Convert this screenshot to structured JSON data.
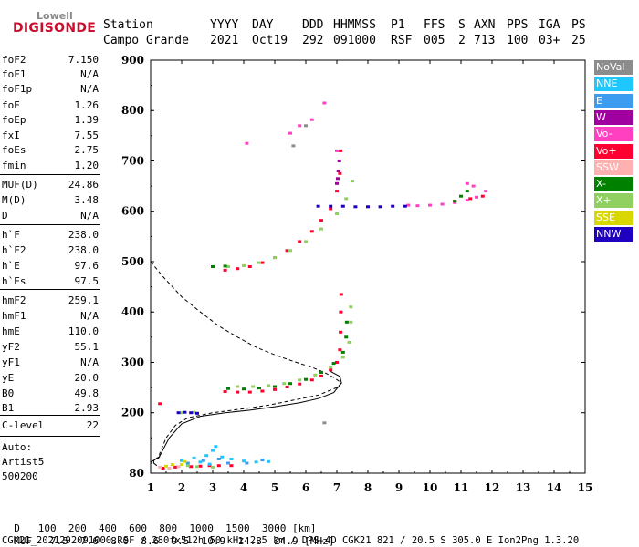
{
  "logo": {
    "line1": "Lowell",
    "line2": "DIGISONDE"
  },
  "header": {
    "row1": [
      "Station",
      "YYYY",
      "DAY",
      "DDD",
      "HHMMSS",
      "P1",
      "FFS",
      "S",
      "AXN",
      "PPS",
      "IGA",
      "PS"
    ],
    "row2": [
      "Campo Grande",
      "2021",
      "Oct19",
      "292",
      "091000",
      "RSF",
      "005",
      "2",
      "713",
      "100",
      "03+",
      "25"
    ]
  },
  "params": [
    {
      "name": "foF2",
      "value": "7.150"
    },
    {
      "name": "foF1",
      "value": "N/A"
    },
    {
      "name": "foF1p",
      "value": "N/A"
    },
    {
      "name": "foE",
      "value": "1.26"
    },
    {
      "name": "foEp",
      "value": "1.39"
    },
    {
      "name": "fxI",
      "value": "7.55"
    },
    {
      "name": "foEs",
      "value": "2.75"
    },
    {
      "name": "fmin",
      "value": "1.20"
    },
    {
      "name": "MUF(D)",
      "value": "24.86"
    },
    {
      "name": "M(D)",
      "value": "3.48"
    },
    {
      "name": "D",
      "value": "N/A"
    },
    {
      "name": "h`F",
      "value": "238.0"
    },
    {
      "name": "h`F2",
      "value": "238.0"
    },
    {
      "name": "h`E",
      "value": "97.6"
    },
    {
      "name": "h`Es",
      "value": "97.5"
    },
    {
      "name": "hmF2",
      "value": "259.1"
    },
    {
      "name": "hmF1",
      "value": "N/A"
    },
    {
      "name": "hmE",
      "value": "110.0"
    },
    {
      "name": "yF2",
      "value": "55.1"
    },
    {
      "name": "yF1",
      "value": "N/A"
    },
    {
      "name": "yE",
      "value": "20.0"
    },
    {
      "name": "B0",
      "value": "49.8"
    },
    {
      "name": "B1",
      "value": "2.93"
    },
    {
      "name": "C-level",
      "value": "22"
    }
  ],
  "auto": {
    "line1": "Auto:",
    "line2": "Artist5",
    "line3": "500200"
  },
  "legend": [
    {
      "label": "NoVal",
      "color": "#8c8c8c"
    },
    {
      "label": "NNE",
      "color": "#1ec8ff"
    },
    {
      "label": "E",
      "color": "#3c9cf0"
    },
    {
      "label": "W",
      "color": "#a000a0"
    },
    {
      "label": "Vo-",
      "color": "#ff40c0"
    },
    {
      "label": "Vo+",
      "color": "#ff0030"
    },
    {
      "label": "SSW",
      "color": "#ffb0b0"
    },
    {
      "label": "X-",
      "color": "#008000"
    },
    {
      "label": "X+",
      "color": "#90d060"
    },
    {
      "label": "SSE",
      "color": "#d8d800"
    },
    {
      "label": "NNW",
      "color": "#2000c0"
    }
  ],
  "footer": {
    "d_label": "D",
    "d_values": [
      "100",
      "200",
      "400",
      "600",
      "800",
      "1000",
      "1500",
      "3000"
    ],
    "d_unit": "[km]",
    "muf_label": "MUF",
    "muf_values": [
      "7.5",
      "7.6",
      "8.0",
      "8.6",
      "9.5",
      "10.9",
      "14.8",
      "24.9"
    ],
    "muf_unit": "[MHz]",
    "info": "CGK21_2021292091000.RSF / 280fx512h 50 kHz 2.5 km / DPS-4D CGK21 821 / 20.5 S 305.0 E Ion2Png 1.3.20"
  },
  "chart_data": {
    "type": "scatter",
    "xlim": [
      1,
      15
    ],
    "ylim": [
      80,
      900
    ],
    "xticks": [
      1,
      2,
      3,
      4,
      5,
      6,
      7,
      8,
      9,
      10,
      11,
      12,
      13,
      14,
      15
    ],
    "yticks": [
      80,
      200,
      300,
      400,
      500,
      600,
      700,
      800,
      900
    ],
    "series": [
      {
        "name": "Vo+",
        "color": "#ff0030",
        "points": [
          [
            1.4,
            90
          ],
          [
            1.8,
            92
          ],
          [
            2.3,
            93
          ],
          [
            2.6,
            94
          ],
          [
            2.9,
            95
          ],
          [
            3.2,
            95
          ],
          [
            3.6,
            95
          ],
          [
            1.3,
            218
          ],
          [
            3.4,
            242
          ],
          [
            3.8,
            241
          ],
          [
            4.2,
            241
          ],
          [
            4.6,
            243
          ],
          [
            5.0,
            246
          ],
          [
            5.4,
            251
          ],
          [
            5.8,
            257
          ],
          [
            6.2,
            265
          ],
          [
            6.5,
            273
          ],
          [
            6.8,
            285
          ],
          [
            7.0,
            300
          ],
          [
            7.1,
            325
          ],
          [
            7.12,
            360
          ],
          [
            7.13,
            400
          ],
          [
            7.14,
            435
          ],
          [
            3.4,
            483
          ],
          [
            3.8,
            486
          ],
          [
            4.2,
            490
          ],
          [
            4.6,
            498
          ],
          [
            5.0,
            508
          ],
          [
            5.4,
            522
          ],
          [
            5.8,
            540
          ],
          [
            6.2,
            560
          ],
          [
            6.5,
            582
          ],
          [
            6.8,
            605
          ],
          [
            7.0,
            640
          ],
          [
            7.1,
            675
          ],
          [
            7.12,
            720
          ],
          [
            10.8,
            620
          ],
          [
            11.3,
            625
          ],
          [
            11.7,
            630
          ]
        ]
      },
      {
        "name": "Vo-",
        "color": "#ff40c0",
        "points": [
          [
            9.3,
            612
          ],
          [
            9.6,
            611
          ],
          [
            10.0,
            612
          ],
          [
            10.4,
            614
          ],
          [
            10.8,
            617
          ],
          [
            11.2,
            622
          ],
          [
            11.5,
            628
          ],
          [
            11.8,
            640
          ],
          [
            11.4,
            650
          ],
          [
            11.2,
            655
          ],
          [
            5.5,
            755
          ],
          [
            5.8,
            770
          ],
          [
            6.2,
            782
          ],
          [
            6.6,
            815
          ],
          [
            7.0,
            720
          ],
          [
            4.1,
            735
          ]
        ]
      },
      {
        "name": "X+",
        "color": "#90d060",
        "points": [
          [
            3.8,
            252
          ],
          [
            4.3,
            252
          ],
          [
            4.8,
            254
          ],
          [
            5.3,
            258
          ],
          [
            5.8,
            265
          ],
          [
            6.3,
            275
          ],
          [
            6.8,
            290
          ],
          [
            7.2,
            310
          ],
          [
            7.4,
            340
          ],
          [
            7.45,
            380
          ],
          [
            7.45,
            410
          ],
          [
            3.5,
            490
          ],
          [
            4.0,
            492
          ],
          [
            4.5,
            498
          ],
          [
            5.0,
            508
          ],
          [
            5.5,
            522
          ],
          [
            6.0,
            540
          ],
          [
            6.5,
            565
          ],
          [
            7.0,
            595
          ],
          [
            7.3,
            625
          ],
          [
            7.5,
            660
          ],
          [
            2.2,
            95
          ],
          [
            2.5,
            93
          ],
          [
            3.0,
            92
          ],
          [
            2.0,
            200
          ],
          [
            2.4,
            201
          ]
        ]
      },
      {
        "name": "X-",
        "color": "#008000",
        "points": [
          [
            3.5,
            248
          ],
          [
            4.0,
            247
          ],
          [
            4.5,
            249
          ],
          [
            5.0,
            252
          ],
          [
            5.5,
            258
          ],
          [
            6.0,
            266
          ],
          [
            6.5,
            280
          ],
          [
            6.9,
            298
          ],
          [
            7.2,
            320
          ],
          [
            7.3,
            350
          ],
          [
            7.32,
            380
          ],
          [
            10.8,
            620
          ],
          [
            11.0,
            630
          ],
          [
            11.2,
            640
          ],
          [
            3.0,
            490
          ],
          [
            3.4,
            491
          ]
        ]
      },
      {
        "name": "NNW",
        "color": "#2000c0",
        "points": [
          [
            6.4,
            610
          ],
          [
            6.8,
            610
          ],
          [
            7.2,
            610
          ],
          [
            7.6,
            609
          ],
          [
            8.0,
            609
          ],
          [
            8.4,
            609
          ],
          [
            8.8,
            610
          ],
          [
            9.2,
            610
          ],
          [
            1.9,
            200
          ],
          [
            2.1,
            201
          ],
          [
            2.3,
            200
          ],
          [
            2.5,
            199
          ]
        ]
      },
      {
        "name": "NNE",
        "color": "#1ec8ff",
        "points": [
          [
            2.0,
            105
          ],
          [
            2.4,
            110
          ],
          [
            2.8,
            115
          ],
          [
            3.0,
            125
          ],
          [
            3.3,
            112
          ],
          [
            3.6,
            108
          ],
          [
            4.0,
            104
          ],
          [
            4.4,
            102
          ],
          [
            4.8,
            103
          ],
          [
            2.6,
            102
          ],
          [
            3.1,
            133
          ],
          [
            2.9,
            98
          ]
        ]
      },
      {
        "name": "E",
        "color": "#3c9cf0",
        "points": [
          [
            2.2,
            100
          ],
          [
            2.7,
            105
          ],
          [
            3.2,
            108
          ],
          [
            3.5,
            100
          ],
          [
            4.1,
            100
          ],
          [
            4.6,
            106
          ]
        ]
      },
      {
        "name": "SSE",
        "color": "#d8d800",
        "points": [
          [
            1.5,
            94
          ],
          [
            1.7,
            97
          ],
          [
            2.0,
            97
          ],
          [
            2.1,
            103
          ]
        ]
      },
      {
        "name": "SSW",
        "color": "#ffb0b0",
        "points": [
          [
            1.3,
            92
          ],
          [
            1.6,
            90
          ],
          [
            1.9,
            93
          ]
        ]
      },
      {
        "name": "W",
        "color": "#a000a0",
        "points": [
          [
            7.05,
            680
          ],
          [
            7.08,
            700
          ],
          [
            7.03,
            665
          ],
          [
            7.0,
            655
          ]
        ]
      },
      {
        "name": "NoVal",
        "color": "#8c8c8c",
        "points": [
          [
            6.6,
            180
          ],
          [
            5.6,
            730
          ],
          [
            6.0,
            770
          ]
        ]
      }
    ],
    "profile_dashed": [
      [
        1.0,
        500
      ],
      [
        1.4,
        470
      ],
      [
        2.0,
        430
      ],
      [
        2.6,
        400
      ],
      [
        3.2,
        372
      ],
      [
        3.8,
        350
      ],
      [
        4.4,
        330
      ],
      [
        5.0,
        315
      ],
      [
        5.6,
        302
      ],
      [
        6.2,
        290
      ],
      [
        6.6,
        280
      ],
      [
        6.9,
        270
      ],
      [
        7.15,
        259
      ],
      [
        7.0,
        250
      ],
      [
        6.4,
        235
      ],
      [
        5.6,
        225
      ],
      [
        4.8,
        215
      ],
      [
        4.0,
        208
      ],
      [
        3.0,
        200
      ],
      [
        2.2,
        190
      ],
      [
        1.8,
        175
      ],
      [
        1.5,
        150
      ],
      [
        1.3,
        120
      ],
      [
        1.26,
        110
      ]
    ],
    "profile_solid": [
      [
        1.0,
        102
      ],
      [
        1.15,
        107
      ],
      [
        1.26,
        110
      ],
      [
        1.6,
        150
      ],
      [
        2.0,
        178
      ],
      [
        2.6,
        193
      ],
      [
        3.4,
        200
      ],
      [
        4.2,
        205
      ],
      [
        5.0,
        212
      ],
      [
        5.8,
        220
      ],
      [
        6.4,
        228
      ],
      [
        6.9,
        240
      ],
      [
        7.15,
        259
      ],
      [
        7.1,
        272
      ],
      [
        6.8,
        282
      ]
    ],
    "profile_small": [
      [
        1.2,
        95
      ],
      [
        1.1,
        100
      ],
      [
        1.1,
        105
      ],
      [
        1.2,
        110
      ],
      [
        1.3,
        113
      ]
    ]
  }
}
